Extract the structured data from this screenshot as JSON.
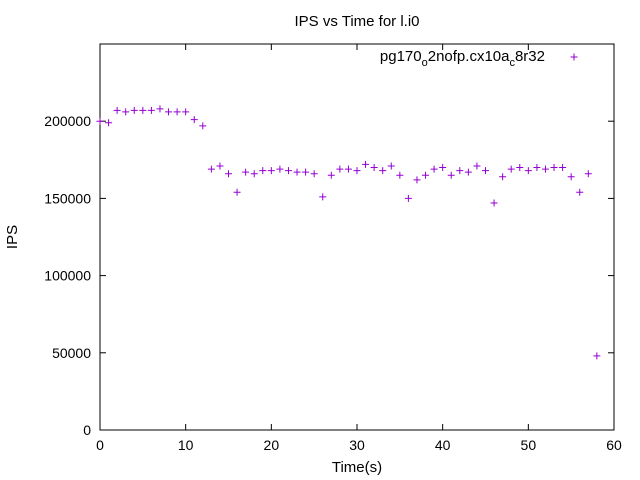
{
  "chart_data": {
    "type": "scatter",
    "title": "IPS vs Time for l.i0",
    "xlabel": "Time(s)",
    "ylabel": "IPS",
    "xlim": [
      0,
      60
    ],
    "ylim": [
      0,
      250000
    ],
    "xticks": [
      0,
      10,
      20,
      30,
      40,
      50,
      60
    ],
    "yticks": [
      0,
      50000,
      100000,
      150000,
      200000
    ],
    "grid": false,
    "legend_position": "top-right",
    "series": [
      {
        "name": "pg170_o2nofp.cx10a_c8r32",
        "legend_parts": [
          "pg170",
          "o",
          "2nofp.cx10a",
          "c",
          "8r32"
        ],
        "color": "#9400d3",
        "marker": "plus",
        "x": [
          0,
          1,
          2,
          3,
          4,
          5,
          6,
          7,
          8,
          9,
          10,
          11,
          12,
          13,
          14,
          15,
          16,
          17,
          18,
          19,
          20,
          21,
          22,
          23,
          24,
          25,
          26,
          27,
          28,
          29,
          30,
          31,
          32,
          33,
          34,
          35,
          36,
          37,
          38,
          39,
          40,
          41,
          42,
          43,
          44,
          45,
          46,
          47,
          48,
          49,
          50,
          51,
          52,
          53,
          54,
          55,
          56,
          57,
          58
        ],
        "y": [
          200000,
          199000,
          207000,
          206000,
          207000,
          207000,
          207000,
          208000,
          206000,
          206000,
          206000,
          201000,
          197000,
          169000,
          171000,
          166000,
          154000,
          167000,
          166000,
          168000,
          168000,
          169000,
          168000,
          167000,
          167000,
          166000,
          151000,
          165000,
          169000,
          169000,
          168000,
          172000,
          170000,
          168000,
          171000,
          165000,
          150000,
          162000,
          165000,
          169000,
          170000,
          165000,
          168000,
          167000,
          171000,
          168000,
          147000,
          164000,
          169000,
          170000,
          168000,
          170000,
          169000,
          170000,
          170000,
          164000,
          154000,
          166000,
          48000
        ]
      }
    ]
  }
}
